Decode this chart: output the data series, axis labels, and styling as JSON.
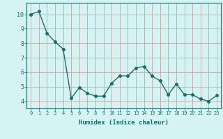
{
  "x": [
    0,
    1,
    2,
    3,
    4,
    5,
    6,
    7,
    8,
    9,
    10,
    11,
    12,
    13,
    14,
    15,
    16,
    17,
    18,
    19,
    20,
    21,
    22,
    23
  ],
  "y": [
    10.0,
    10.2,
    8.7,
    8.1,
    7.6,
    4.2,
    4.95,
    4.55,
    4.35,
    4.35,
    5.25,
    5.75,
    5.75,
    6.3,
    6.4,
    5.75,
    5.4,
    4.45,
    5.2,
    4.45,
    4.45,
    4.15,
    4.0,
    4.4
  ],
  "line_color": "#1a6b6b",
  "marker": "o",
  "marker_size": 2.5,
  "line_width": 1.0,
  "xlabel": "Humidex (Indice chaleur)",
  "xlim": [
    -0.5,
    23.5
  ],
  "ylim": [
    3.5,
    10.8
  ],
  "yticks": [
    4,
    5,
    6,
    7,
    8,
    9,
    10
  ],
  "xticks": [
    0,
    1,
    2,
    3,
    4,
    5,
    6,
    7,
    8,
    9,
    10,
    11,
    12,
    13,
    14,
    15,
    16,
    17,
    18,
    19,
    20,
    21,
    22,
    23
  ],
  "bg_color": "#d6f3f3",
  "grid_color": "#c0a8a8",
  "axis_color": "#1a6b6b",
  "tick_color": "#1a6b6b",
  "xlabel_color": "#1a6b6b",
  "xlabel_fontsize": 6.5,
  "tick_fontsize_x": 5.0,
  "tick_fontsize_y": 6.0
}
